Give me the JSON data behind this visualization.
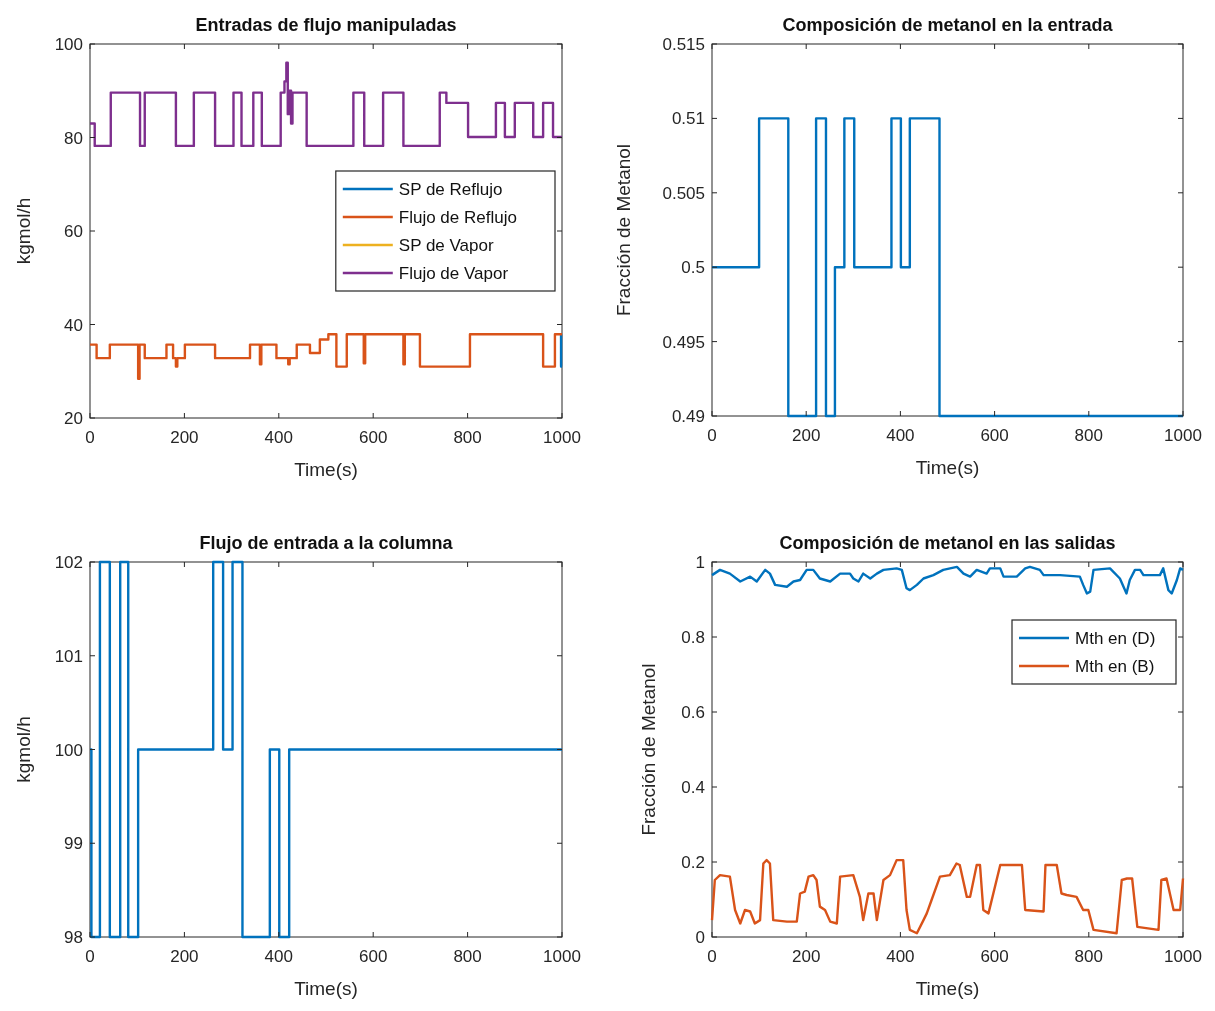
{
  "chart_data": [
    {
      "type": "step",
      "title": "Entradas de flujo manipuladas",
      "xlabel": "Time(s)",
      "ylabel": "kgmol/h",
      "xlim": [
        0,
        1000
      ],
      "xticks": [
        0,
        200,
        400,
        600,
        800,
        1000
      ],
      "ylim": [
        20,
        100
      ],
      "yticks": [
        20,
        40,
        60,
        80,
        100
      ],
      "legend": "right",
      "series": [
        {
          "name": "SP de Reflujo",
          "color": "#0072bd",
          "x": [
            998,
            998,
            1000
          ],
          "values": [
            37.9,
            31,
            31
          ]
        },
        {
          "name": "Flujo de Reflujo",
          "color": "#d95319",
          "x": [
            0,
            14,
            42,
            102,
            105,
            116,
            162,
            176,
            182,
            185,
            201,
            265,
            339,
            360,
            363,
            395,
            420,
            423,
            438,
            466,
            487,
            505,
            522,
            544,
            580,
            583,
            664,
            667,
            699,
            805,
            960,
            985,
            1000
          ],
          "values": [
            35.7,
            32.8,
            35.7,
            28.4,
            35.7,
            32.8,
            35.7,
            32.8,
            31,
            32.8,
            35.7,
            32.8,
            35.7,
            31.5,
            35.7,
            32.8,
            31.5,
            32.8,
            35.7,
            33.9,
            36.8,
            37.9,
            31,
            37.9,
            31.7,
            37.9,
            31.5,
            37.9,
            31,
            37.9,
            31,
            37.9,
            37.9
          ]
        },
        {
          "name": "SP de Vapor",
          "color": "#edb120"
        },
        {
          "name": "Flujo de Vapor",
          "color": "#7e2f8e",
          "x": [
            0,
            10,
            44,
            106,
            116,
            182,
            220,
            265,
            304,
            321,
            346,
            364,
            404,
            412,
            416,
            419,
            422,
            426,
            429,
            459,
            558,
            581,
            621,
            664,
            741,
            755,
            801,
            860,
            879,
            900,
            939,
            960,
            981,
            1000
          ],
          "values": [
            83,
            78.2,
            89.6,
            78.2,
            89.6,
            78.2,
            89.6,
            78.2,
            89.6,
            78.2,
            89.6,
            78.2,
            89.6,
            92,
            96,
            85,
            90,
            83,
            89.6,
            78.2,
            89.6,
            78.2,
            89.6,
            78.2,
            89.6,
            87.4,
            80.1,
            87.4,
            80.1,
            87.4,
            80.1,
            87.4,
            80.1,
            80.1
          ]
        }
      ]
    },
    {
      "type": "step",
      "title": "Composición de metanol en la entrada",
      "xlabel": "Time(s)",
      "ylabel": "Fracción de Metanol",
      "xlim": [
        0,
        1000
      ],
      "xticks": [
        0,
        200,
        400,
        600,
        800,
        1000
      ],
      "ylim": [
        0.49,
        0.515
      ],
      "yticks": [
        0.49,
        0.495,
        0.5,
        0.505,
        0.51,
        0.515
      ],
      "series": [
        {
          "color": "#0072bd",
          "x": [
            0,
            100,
            162,
            221,
            242,
            261,
            281,
            302,
            381,
            401,
            420,
            483,
            1000
          ],
          "values": [
            0.5,
            0.51,
            0.49,
            0.51,
            0.49,
            0.5,
            0.51,
            0.5,
            0.51,
            0.5,
            0.51,
            0.49,
            0.49
          ]
        }
      ]
    },
    {
      "type": "step",
      "title": "Flujo de entrada a la columna",
      "xlabel": "Time(s)",
      "ylabel": "kgmol/h",
      "xlim": [
        0,
        1000
      ],
      "xticks": [
        0,
        200,
        400,
        600,
        800,
        1000
      ],
      "ylim": [
        98,
        102
      ],
      "yticks": [
        98,
        99,
        100,
        101,
        102
      ],
      "series": [
        {
          "color": "#0072bd",
          "x": [
            0,
            3,
            21,
            42,
            64,
            81,
            102,
            261,
            282,
            302,
            323,
            381,
            401,
            422,
            1000
          ],
          "values": [
            100,
            98,
            102,
            98,
            102,
            98,
            100,
            102,
            100,
            102,
            98,
            100,
            98,
            100,
            100
          ]
        }
      ]
    },
    {
      "type": "line",
      "title": "Composición de metanol en las salidas",
      "xlabel": "Time(s)",
      "ylabel": "Fracción de Metanol",
      "xlim": [
        0,
        1000
      ],
      "xticks": [
        0,
        200,
        400,
        600,
        800,
        1000
      ],
      "ylim": [
        0,
        1
      ],
      "yticks": [
        0,
        0.2,
        0.4,
        0.6,
        0.8,
        1
      ],
      "legend": "top right",
      "series": [
        {
          "name": "Mth en (D)",
          "color": "#0072bd",
          "x": [
            0,
            17,
            38,
            60,
            81,
            95,
            113,
            123,
            134,
            159,
            173,
            187,
            201,
            215,
            229,
            251,
            272,
            293,
            300,
            311,
            321,
            336,
            350,
            364,
            392,
            403,
            413,
            420,
            435,
            449,
            470,
            491,
            520,
            534,
            548,
            562,
            583,
            590,
            612,
            619,
            647,
            665,
            675,
            696,
            704,
            739,
            781,
            788,
            796,
            803,
            810,
            845,
            866,
            880,
            887,
            898,
            909,
            916,
            951,
            958,
            969,
            976,
            987,
            994,
            1000
          ],
          "values": [
            0.965,
            0.979,
            0.969,
            0.948,
            0.961,
            0.948,
            0.979,
            0.969,
            0.939,
            0.934,
            0.948,
            0.952,
            0.979,
            0.979,
            0.956,
            0.948,
            0.969,
            0.969,
            0.956,
            0.948,
            0.969,
            0.956,
            0.969,
            0.979,
            0.983,
            0.979,
            0.93,
            0.925,
            0.939,
            0.956,
            0.965,
            0.979,
            0.987,
            0.969,
            0.961,
            0.979,
            0.969,
            0.983,
            0.983,
            0.961,
            0.961,
            0.983,
            0.987,
            0.979,
            0.965,
            0.965,
            0.961,
            0.939,
            0.916,
            0.921,
            0.979,
            0.983,
            0.956,
            0.916,
            0.952,
            0.979,
            0.979,
            0.965,
            0.965,
            0.983,
            0.925,
            0.916,
            0.952,
            0.983,
            0.979
          ]
        },
        {
          "name": "Mth en (B)",
          "color": "#d95319",
          "x": [
            0,
            6,
            17,
            38,
            49,
            60,
            70,
            81,
            91,
            102,
            109,
            116,
            123,
            130,
            159,
            180,
            187,
            197,
            205,
            215,
            222,
            229,
            240,
            251,
            265,
            272,
            300,
            314,
            321,
            332,
            343,
            350,
            364,
            378,
            392,
            406,
            406,
            413,
            420,
            435,
            449,
            456,
            466,
            484,
            505,
            519,
            526,
            541,
            548,
            562,
            569,
            576,
            587,
            612,
            658,
            665,
            704,
            708,
            732,
            742,
            753,
            774,
            788,
            799,
            810,
            859,
            870,
            881,
            892,
            903,
            948,
            954,
            965,
            980,
            994,
            1000
          ],
          "values": [
            0.045,
            0.152,
            0.165,
            0.161,
            0.072,
            0.036,
            0.072,
            0.068,
            0.036,
            0.045,
            0.196,
            0.205,
            0.196,
            0.045,
            0.041,
            0.041,
            0.116,
            0.121,
            0.161,
            0.165,
            0.152,
            0.081,
            0.072,
            0.041,
            0.036,
            0.161,
            0.165,
            0.107,
            0.045,
            0.116,
            0.116,
            0.045,
            0.152,
            0.165,
            0.205,
            0.205,
            0.205,
            0.072,
            0.019,
            0.01,
            0.045,
            0.063,
            0.098,
            0.161,
            0.165,
            0.196,
            0.192,
            0.107,
            0.107,
            0.192,
            0.192,
            0.072,
            0.063,
            0.192,
            0.192,
            0.072,
            0.068,
            0.192,
            0.192,
            0.116,
            0.112,
            0.107,
            0.072,
            0.072,
            0.019,
            0.01,
            0.152,
            0.156,
            0.156,
            0.027,
            0.019,
            0.152,
            0.156,
            0.072,
            0.072,
            0.156
          ]
        }
      ]
    }
  ]
}
